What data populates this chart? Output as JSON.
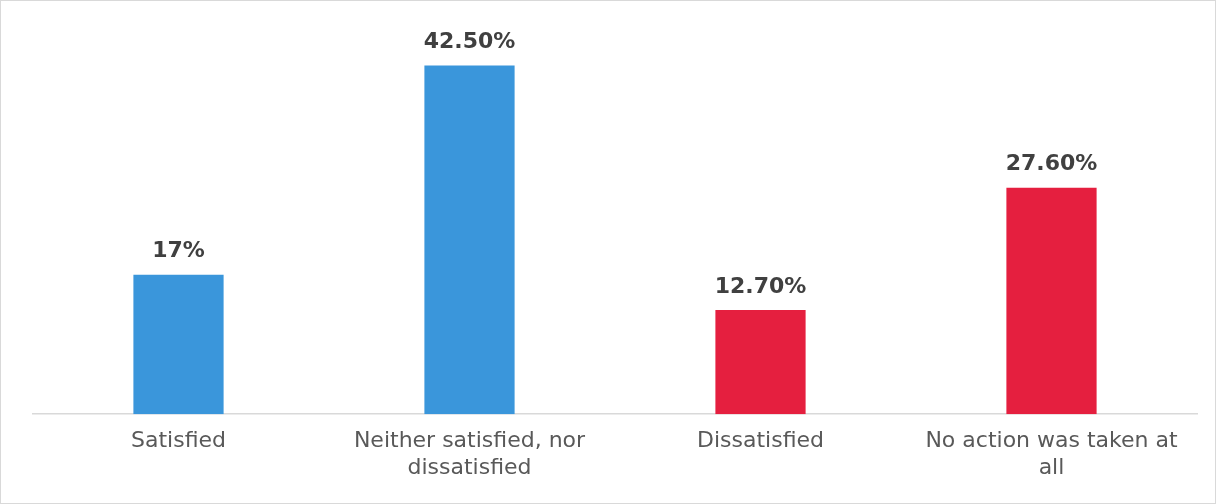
{
  "chart_data": {
    "type": "bar",
    "categories": [
      "Satisfied",
      "Neither satisfied, nor dissatisfied",
      "Dissatisfied",
      "No action was taken at all"
    ],
    "values": [
      17,
      42.5,
      12.7,
      27.6
    ],
    "colors": [
      "#3a96db",
      "#3a96db",
      "#e51f3f",
      "#e51f3f"
    ],
    "value_labels": [
      "17%",
      "42.50%",
      "12.70%",
      "27.60%"
    ],
    "grid": false,
    "legend": false
  }
}
